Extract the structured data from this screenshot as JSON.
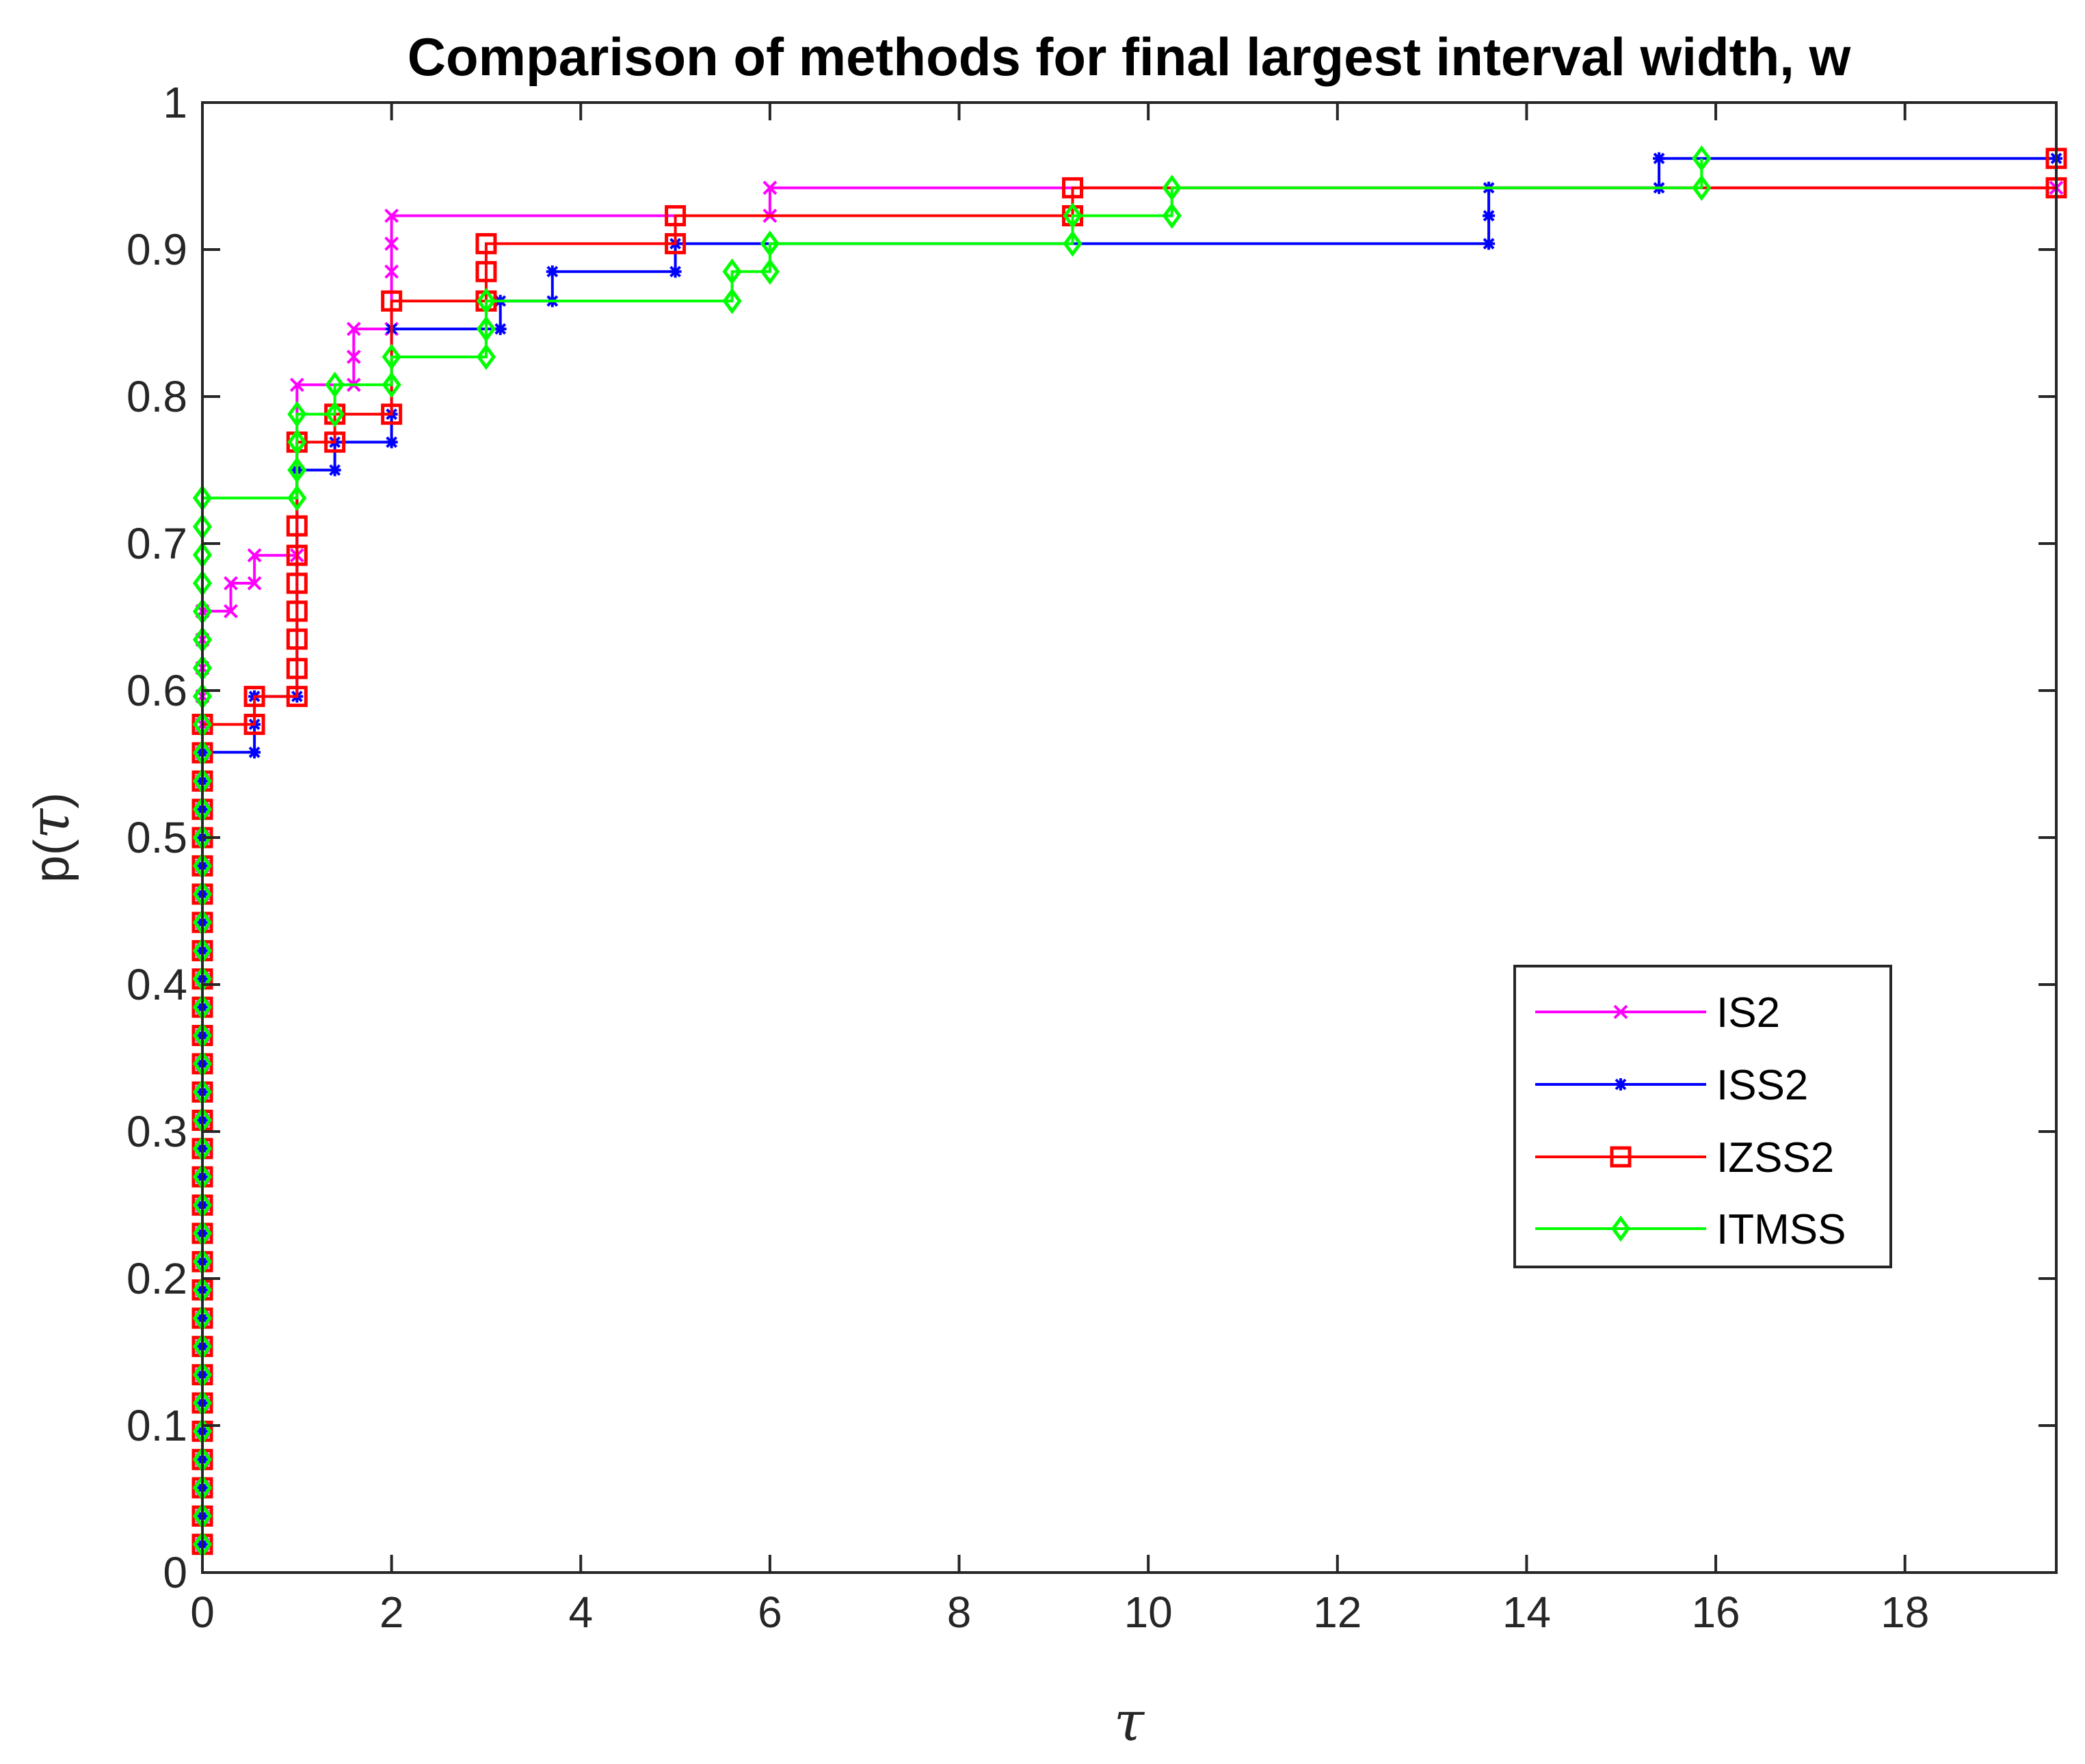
{
  "chart_data": {
    "type": "line",
    "step": true,
    "title": "Comparison of methods for final largest interval width, w",
    "xlabel": "τ",
    "ylabel_main": "p(",
    "ylabel_var": "τ",
    "ylabel_close": ")",
    "xlim": [
      0,
      19.6
    ],
    "ylim": [
      0,
      1
    ],
    "xticks": [
      0,
      2,
      4,
      6,
      8,
      10,
      12,
      14,
      16,
      18
    ],
    "xtick_labels": [
      "0",
      "2",
      "4",
      "6",
      "8",
      "10",
      "12",
      "14",
      "16",
      "18"
    ],
    "yticks": [
      0,
      0.1,
      0.2,
      0.3,
      0.4,
      0.5,
      0.6,
      0.7,
      0.8,
      0.9,
      1
    ],
    "ytick_labels": [
      "0",
      "0.1",
      "0.2",
      "0.3",
      "0.4",
      "0.5",
      "0.6",
      "0.7",
      "0.8",
      "0.9",
      "1"
    ],
    "grid": false,
    "legend_position": "east-lower-right",
    "series": [
      {
        "name": "IS2",
        "color": "#ff00ff",
        "marker": "x",
        "points": [
          [
            0,
            0.0192
          ],
          [
            0,
            0.654
          ],
          [
            0.3,
            0.654
          ],
          [
            0.3,
            0.673
          ],
          [
            0.55,
            0.673
          ],
          [
            0.55,
            0.692
          ],
          [
            1,
            0.692
          ],
          [
            1,
            0.808
          ],
          [
            1.6,
            0.808
          ],
          [
            1.6,
            0.827
          ],
          [
            1.6,
            0.846
          ],
          [
            2,
            0.846
          ],
          [
            2,
            0.885
          ],
          [
            2,
            0.904
          ],
          [
            2,
            0.923
          ],
          [
            6,
            0.923
          ],
          [
            6,
            0.942
          ],
          [
            19.6,
            0.942
          ]
        ]
      },
      {
        "name": "ISS2",
        "color": "#0000ff",
        "marker": "*",
        "points": [
          [
            0,
            0.0192
          ],
          [
            0,
            0.558
          ],
          [
            0.55,
            0.558
          ],
          [
            0.55,
            0.577
          ],
          [
            0.55,
            0.596
          ],
          [
            1,
            0.596
          ],
          [
            1,
            0.75
          ],
          [
            1.4,
            0.75
          ],
          [
            1.4,
            0.769
          ],
          [
            2,
            0.769
          ],
          [
            2,
            0.788
          ],
          [
            2,
            0.846
          ],
          [
            3.15,
            0.846
          ],
          [
            3.15,
            0.865
          ],
          [
            3.7,
            0.865
          ],
          [
            3.7,
            0.885
          ],
          [
            5,
            0.885
          ],
          [
            5,
            0.904
          ],
          [
            13.6,
            0.904
          ],
          [
            13.6,
            0.923
          ],
          [
            13.6,
            0.942
          ],
          [
            15.4,
            0.942
          ],
          [
            15.4,
            0.962
          ],
          [
            19.6,
            0.962
          ]
        ]
      },
      {
        "name": "IZSS2",
        "color": "#ff0000",
        "marker": "square",
        "points": [
          [
            0,
            0.0192
          ],
          [
            0,
            0.577
          ],
          [
            0.55,
            0.577
          ],
          [
            0.55,
            0.596
          ],
          [
            1,
            0.596
          ],
          [
            1,
            0.615
          ],
          [
            1,
            0.635
          ],
          [
            1,
            0.654
          ],
          [
            1,
            0.673
          ],
          [
            1,
            0.692
          ],
          [
            1,
            0.712
          ],
          [
            1,
            0.769
          ],
          [
            1.4,
            0.769
          ],
          [
            1.4,
            0.788
          ],
          [
            2,
            0.788
          ],
          [
            2,
            0.865
          ],
          [
            3,
            0.865
          ],
          [
            3,
            0.885
          ],
          [
            3,
            0.904
          ],
          [
            5,
            0.904
          ],
          [
            5,
            0.923
          ],
          [
            9.2,
            0.923
          ],
          [
            9.2,
            0.942
          ],
          [
            19.6,
            0.942
          ],
          [
            19.6,
            0.962
          ]
        ]
      },
      {
        "name": "ITMSS",
        "color": "#00ff00",
        "marker": "diamond",
        "points": [
          [
            0,
            0.0192
          ],
          [
            0,
            0.731
          ],
          [
            1,
            0.731
          ],
          [
            1,
            0.75
          ],
          [
            1,
            0.769
          ],
          [
            1,
            0.788
          ],
          [
            1.4,
            0.788
          ],
          [
            1.4,
            0.808
          ],
          [
            2,
            0.808
          ],
          [
            2,
            0.827
          ],
          [
            3,
            0.827
          ],
          [
            3,
            0.846
          ],
          [
            3,
            0.865
          ],
          [
            5.6,
            0.865
          ],
          [
            5.6,
            0.885
          ],
          [
            6,
            0.885
          ],
          [
            6,
            0.904
          ],
          [
            9.2,
            0.904
          ],
          [
            9.2,
            0.923
          ],
          [
            10.25,
            0.923
          ],
          [
            10.25,
            0.942
          ],
          [
            15.85,
            0.942
          ],
          [
            15.85,
            0.962
          ]
        ]
      }
    ]
  }
}
